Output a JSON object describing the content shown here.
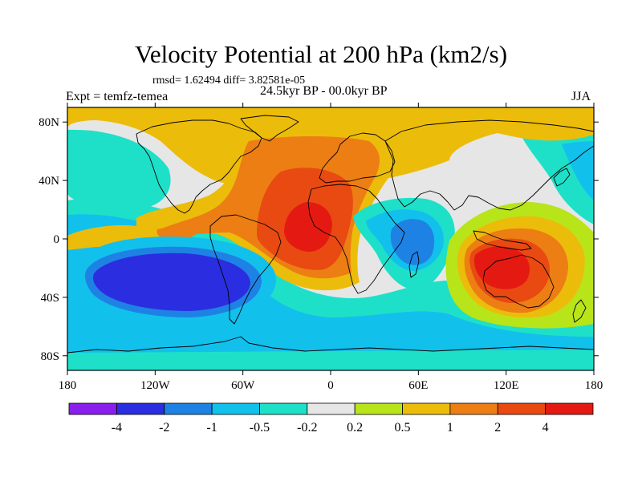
{
  "title": "Velocity Potential at 200 hPa (km2/s)",
  "stats": "rmsd= 1.62494 diff= 3.82581e-05",
  "expt": "Expt = temfz-temea",
  "period": "24.5kyr BP - 00.0kyr BP",
  "season": "JJA",
  "chart_data": {
    "type": "heatmap",
    "title": "Velocity Potential at 200 hPa (km2/s)",
    "xlabel": "",
    "ylabel": "",
    "xlim": [
      -180,
      180
    ],
    "ylim": [
      -90,
      90
    ],
    "x_ticks": [
      {
        "value": -180,
        "label": "180"
      },
      {
        "value": -120,
        "label": "120W"
      },
      {
        "value": -60,
        "label": "60W"
      },
      {
        "value": 0,
        "label": "0"
      },
      {
        "value": 60,
        "label": "60E"
      },
      {
        "value": 120,
        "label": "120E"
      },
      {
        "value": 180,
        "label": "180"
      }
    ],
    "y_ticks": [
      {
        "value": 80,
        "label": "80N"
      },
      {
        "value": 40,
        "label": "40N"
      },
      {
        "value": 0,
        "label": "0"
      },
      {
        "value": -40,
        "label": "40S"
      },
      {
        "value": -80,
        "label": "80S"
      }
    ],
    "colorbar": {
      "levels": [
        "-4",
        "-2",
        "-1",
        "-0.5",
        "-0.2",
        "0.2",
        "0.5",
        "1",
        "2",
        "4"
      ],
      "colors": [
        "#8a1eec",
        "#2a2ee0",
        "#1e82e4",
        "#12c0ec",
        "#1ee0c8",
        "#e6e6e6",
        "#b8e41a",
        "#ecbc0a",
        "#ec7e14",
        "#e84a12",
        "#e41a12"
      ]
    },
    "features": [
      {
        "name": "positive center Atlantic / Africa",
        "lon": -18,
        "lat": 15,
        "value": 3.5
      },
      {
        "name": "positive center Australia / Indonesia",
        "lon": 118,
        "lat": -12,
        "value": 4.0
      },
      {
        "name": "negative center South Pacific",
        "lon": -115,
        "lat": -30,
        "value": -3.0
      },
      {
        "name": "negative center Indian Ocean / East Africa",
        "lon": 52,
        "lat": 2,
        "value": -2.5
      },
      {
        "name": "positive band Arctic",
        "lon": 0,
        "lat": 80,
        "value": 0.8
      },
      {
        "name": "negative region North Pacific",
        "lon": 170,
        "lat": 40,
        "value": -0.6
      }
    ]
  }
}
